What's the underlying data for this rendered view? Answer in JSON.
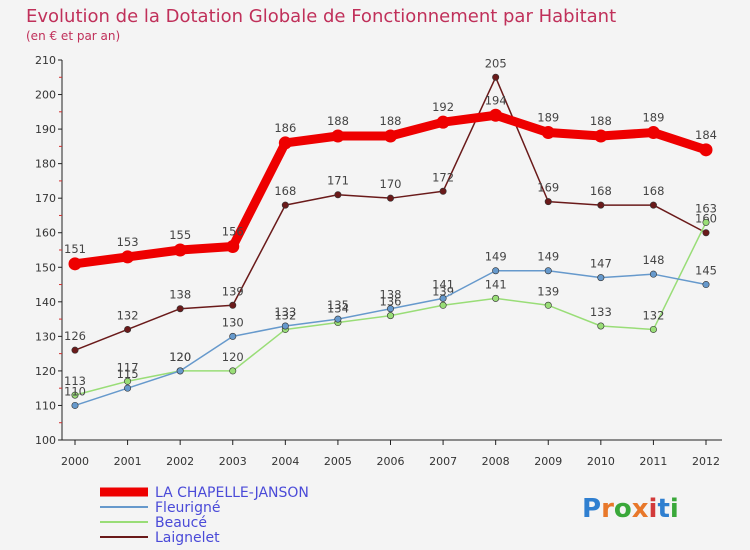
{
  "chart_data": {
    "type": "line",
    "title": "Evolution de la Dotation Globale de Fonctionnement par Habitant",
    "subtitle": "(en € et par an)",
    "xlabel": "",
    "ylabel": "",
    "ylim": [
      100,
      210
    ],
    "yticks": [
      100,
      110,
      120,
      130,
      140,
      150,
      160,
      170,
      180,
      190,
      200,
      210
    ],
    "categories": [
      "2000",
      "2001",
      "2002",
      "2003",
      "2004",
      "2005",
      "2006",
      "2007",
      "2008",
      "2009",
      "2010",
      "2011",
      "2012"
    ],
    "series": [
      {
        "name": "Laignelet",
        "color": "#6a1a1a",
        "values": [
          126,
          132,
          138,
          139,
          168,
          171,
          170,
          172,
          205,
          169,
          168,
          168,
          160
        ]
      },
      {
        "name": "Beaucé",
        "color": "#99dd77",
        "values": [
          113,
          117,
          120,
          120,
          132,
          134,
          136,
          139,
          141,
          139,
          133,
          132,
          163
        ]
      },
      {
        "name": "Fleurigné",
        "color": "#6699cc",
        "values": [
          110,
          115,
          120,
          130,
          133,
          135,
          138,
          141,
          149,
          149,
          147,
          148,
          145
        ]
      },
      {
        "name": "LA CHAPELLE-JANSON",
        "color": "#ee0000",
        "values": [
          151,
          153,
          155,
          156,
          186,
          188,
          188,
          192,
          194,
          189,
          188,
          189,
          184
        ]
      }
    ],
    "legend_order": [
      "LA CHAPELLE-JANSON",
      "Fleurigné",
      "Beaucé",
      "Laignelet"
    ],
    "legend_position": "bottom-left",
    "grid": false
  },
  "watermark": "Proxiti"
}
